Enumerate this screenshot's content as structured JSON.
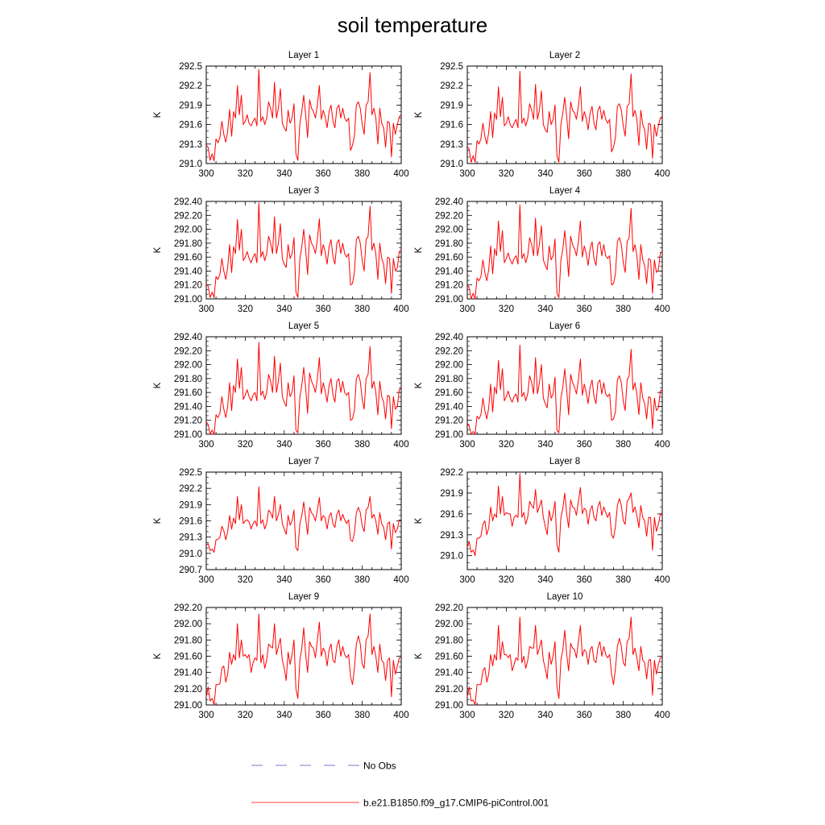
{
  "title": "soil temperature",
  "colors": {
    "series": "#ff0000",
    "obs": "#7777cc",
    "axis": "#000000"
  },
  "legend": {
    "obs_label": "No Obs",
    "model_label": "b.e21.B1850.f09_g17.CMIP6-piControl.001"
  },
  "chart_data": [
    {
      "type": "line",
      "title": "Layer 1",
      "ylabel": "K",
      "xlim": [
        300,
        400
      ],
      "ylim": [
        291.0,
        292.5
      ],
      "xticks": [
        300,
        320,
        340,
        360,
        380,
        400
      ],
      "yticks": [
        "291.0",
        "291.3",
        "291.6",
        "291.9",
        "292.2",
        "292.5"
      ],
      "series_index": 0
    },
    {
      "type": "line",
      "title": "Layer 2",
      "ylabel": "K",
      "xlim": [
        300,
        400
      ],
      "ylim": [
        291.0,
        292.5
      ],
      "xticks": [
        300,
        320,
        340,
        360,
        380,
        400
      ],
      "yticks": [
        "291.0",
        "291.3",
        "291.6",
        "291.9",
        "292.2",
        "292.5"
      ],
      "series_index": 1
    },
    {
      "type": "line",
      "title": "Layer 3",
      "ylabel": "K",
      "xlim": [
        300,
        400
      ],
      "ylim": [
        291.0,
        292.4
      ],
      "xticks": [
        300,
        320,
        340,
        360,
        380,
        400
      ],
      "yticks": [
        "291.00",
        "291.20",
        "291.40",
        "291.60",
        "291.80",
        "292.00",
        "292.20",
        "292.40"
      ],
      "series_index": 2
    },
    {
      "type": "line",
      "title": "Layer 4",
      "ylabel": "K",
      "xlim": [
        300,
        400
      ],
      "ylim": [
        291.0,
        292.4
      ],
      "xticks": [
        300,
        320,
        340,
        360,
        380,
        400
      ],
      "yticks": [
        "291.00",
        "291.20",
        "291.40",
        "291.60",
        "291.80",
        "292.00",
        "292.20",
        "292.40"
      ],
      "series_index": 3
    },
    {
      "type": "line",
      "title": "Layer 5",
      "ylabel": "K",
      "xlim": [
        300,
        400
      ],
      "ylim": [
        291.0,
        292.4
      ],
      "xticks": [
        300,
        320,
        340,
        360,
        380,
        400
      ],
      "yticks": [
        "291.00",
        "291.20",
        "291.40",
        "291.60",
        "291.80",
        "292.00",
        "292.20",
        "292.40"
      ],
      "series_index": 4
    },
    {
      "type": "line",
      "title": "Layer 6",
      "ylabel": "K",
      "xlim": [
        300,
        400
      ],
      "ylim": [
        291.0,
        292.4
      ],
      "xticks": [
        300,
        320,
        340,
        360,
        380,
        400
      ],
      "yticks": [
        "291.00",
        "291.20",
        "291.40",
        "291.60",
        "291.80",
        "292.00",
        "292.20",
        "292.40"
      ],
      "series_index": 5
    },
    {
      "type": "line",
      "title": "Layer 7",
      "ylabel": "K",
      "xlim": [
        300,
        400
      ],
      "ylim": [
        290.7,
        292.5
      ],
      "xticks": [
        300,
        320,
        340,
        360,
        380,
        400
      ],
      "yticks": [
        "290.7",
        "291.0",
        "291.3",
        "291.6",
        "291.9",
        "292.2",
        "292.5"
      ],
      "series_index": 6
    },
    {
      "type": "line",
      "title": "Layer 8",
      "ylabel": "K",
      "xlim": [
        300,
        400
      ],
      "ylim": [
        290.8,
        292.2
      ],
      "xticks": [
        300,
        320,
        340,
        360,
        380,
        400
      ],
      "yticks": [
        "291.0",
        "291.3",
        "291.6",
        "291.9",
        "292.2"
      ],
      "ytick_values": [
        291.0,
        291.3,
        291.6,
        291.9,
        292.2
      ],
      "series_index": 7
    },
    {
      "type": "line",
      "title": "Layer 9",
      "ylabel": "K",
      "xlim": [
        300,
        400
      ],
      "ylim": [
        291.0,
        292.2
      ],
      "xticks": [
        300,
        320,
        340,
        360,
        380,
        400
      ],
      "yticks": [
        "291.00",
        "291.20",
        "291.40",
        "291.60",
        "291.80",
        "292.00",
        "292.20"
      ],
      "series_index": 8
    },
    {
      "type": "line",
      "title": "Layer 10",
      "ylabel": "K",
      "xlim": [
        300,
        400
      ],
      "ylim": [
        291.0,
        292.2
      ],
      "xticks": [
        300,
        320,
        340,
        360,
        380,
        400
      ],
      "yticks": [
        "291.00",
        "291.20",
        "291.40",
        "291.60",
        "291.80",
        "292.00",
        "292.20"
      ],
      "series_index": 9
    }
  ],
  "series_x_start": 300,
  "series_x_step": 1,
  "series": [
    [
      291.28,
      291.25,
      291.05,
      291.15,
      291.04,
      291.38,
      291.32,
      291.4,
      291.65,
      291.45,
      291.33,
      291.5,
      291.83,
      291.42,
      291.8,
      291.7,
      292.2,
      291.75,
      292.05,
      291.6,
      291.65,
      291.75,
      291.62,
      291.58,
      291.65,
      291.7,
      291.58,
      292.45,
      291.65,
      291.72,
      291.6,
      291.7,
      291.95,
      291.85,
      291.7,
      292.25,
      291.7,
      291.85,
      292.15,
      291.62,
      291.55,
      291.5,
      291.82,
      291.62,
      291.7,
      291.92,
      291.15,
      291.05,
      291.62,
      291.8,
      292.05,
      291.75,
      291.4,
      291.98,
      291.85,
      291.8,
      291.7,
      291.9,
      292.2,
      291.68,
      291.82,
      291.72,
      291.55,
      291.8,
      291.9,
      291.65,
      291.55,
      291.85,
      291.9,
      291.7,
      291.85,
      291.7,
      291.65,
      291.7,
      291.2,
      291.28,
      291.42,
      291.9,
      291.95,
      291.85,
      291.6,
      291.45,
      291.9,
      291.95,
      292.4,
      291.75,
      291.85,
      291.7,
      291.3,
      291.85,
      291.62,
      291.55,
      291.25,
      291.65,
      291.62,
      291.1,
      291.62,
      291.45,
      291.6,
      291.72,
      291.75
    ],
    [
      291.26,
      291.22,
      291.02,
      291.12,
      291.02,
      291.35,
      291.3,
      291.38,
      291.62,
      291.42,
      291.3,
      291.48,
      291.8,
      291.4,
      291.78,
      291.68,
      292.18,
      291.72,
      292.02,
      291.58,
      291.62,
      291.72,
      291.6,
      291.55,
      291.62,
      291.68,
      291.55,
      292.42,
      291.62,
      291.7,
      291.58,
      291.68,
      291.92,
      291.82,
      291.68,
      292.22,
      291.68,
      291.82,
      292.12,
      291.6,
      291.52,
      291.48,
      291.8,
      291.6,
      291.68,
      291.9,
      291.12,
      291.02,
      291.6,
      291.78,
      292.02,
      291.72,
      291.38,
      291.95,
      291.82,
      291.78,
      291.68,
      291.88,
      292.18,
      291.65,
      291.8,
      291.7,
      291.52,
      291.78,
      291.88,
      291.62,
      291.52,
      291.82,
      291.88,
      291.68,
      291.82,
      291.68,
      291.62,
      291.68,
      291.18,
      291.25,
      291.4,
      291.88,
      291.92,
      291.82,
      291.58,
      291.42,
      291.88,
      291.92,
      292.38,
      291.72,
      291.82,
      291.68,
      291.28,
      291.82,
      291.6,
      291.52,
      291.22,
      291.62,
      291.6,
      291.08,
      291.6,
      291.42,
      291.58,
      291.7,
      291.72
    ],
    [
      291.22,
      291.18,
      291.02,
      291.1,
      291.02,
      291.32,
      291.28,
      291.35,
      291.58,
      291.4,
      291.28,
      291.45,
      291.78,
      291.38,
      291.75,
      291.65,
      292.14,
      291.7,
      292.0,
      291.55,
      291.6,
      291.68,
      291.58,
      291.52,
      291.6,
      291.65,
      291.52,
      292.38,
      291.6,
      291.68,
      291.55,
      291.65,
      291.9,
      291.8,
      291.65,
      292.18,
      291.65,
      291.8,
      292.08,
      291.58,
      291.5,
      291.45,
      291.78,
      291.58,
      291.65,
      291.88,
      291.1,
      291.02,
      291.58,
      291.75,
      292.0,
      291.7,
      291.35,
      291.92,
      291.8,
      291.75,
      291.65,
      291.85,
      292.15,
      291.62,
      291.78,
      291.68,
      291.5,
      291.75,
      291.85,
      291.6,
      291.5,
      291.8,
      291.85,
      291.65,
      291.8,
      291.65,
      291.6,
      291.65,
      291.2,
      291.22,
      291.38,
      291.85,
      291.9,
      291.8,
      291.55,
      291.4,
      291.85,
      291.9,
      292.33,
      291.7,
      291.8,
      291.65,
      291.28,
      291.8,
      291.58,
      291.5,
      291.22,
      291.6,
      291.58,
      291.08,
      291.58,
      291.4,
      291.45,
      291.68,
      291.7
    ],
    [
      291.2,
      291.16,
      291.0,
      291.08,
      291.0,
      291.3,
      291.26,
      291.32,
      291.56,
      291.38,
      291.26,
      291.42,
      291.76,
      291.36,
      291.72,
      291.62,
      292.12,
      291.68,
      291.98,
      291.52,
      291.58,
      291.66,
      291.56,
      291.5,
      291.58,
      291.62,
      291.5,
      292.35,
      291.58,
      291.65,
      291.52,
      291.62,
      291.88,
      291.78,
      291.62,
      292.16,
      291.62,
      291.78,
      292.05,
      291.56,
      291.48,
      291.42,
      291.76,
      291.56,
      291.62,
      291.86,
      291.08,
      291.02,
      291.56,
      291.72,
      291.98,
      291.68,
      291.32,
      291.9,
      291.78,
      291.72,
      291.62,
      291.82,
      292.12,
      291.6,
      291.76,
      291.65,
      291.48,
      291.72,
      291.82,
      291.58,
      291.48,
      291.78,
      291.82,
      291.62,
      291.78,
      291.62,
      291.58,
      291.62,
      291.2,
      291.22,
      291.36,
      291.82,
      291.88,
      291.78,
      291.52,
      291.38,
      291.82,
      291.88,
      292.3,
      291.68,
      291.78,
      291.62,
      291.28,
      291.78,
      291.56,
      291.48,
      291.22,
      291.58,
      291.56,
      291.08,
      291.56,
      291.38,
      291.42,
      291.66,
      291.68
    ],
    [
      291.18,
      291.14,
      291.0,
      291.06,
      291.0,
      291.28,
      291.24,
      291.3,
      291.54,
      291.36,
      291.24,
      291.4,
      291.74,
      291.34,
      291.7,
      291.6,
      292.08,
      291.66,
      291.96,
      291.5,
      291.56,
      291.64,
      291.54,
      291.48,
      291.56,
      291.6,
      291.48,
      292.32,
      291.56,
      291.62,
      291.5,
      291.6,
      291.86,
      291.76,
      291.6,
      292.12,
      291.6,
      291.76,
      292.02,
      291.54,
      291.46,
      291.4,
      291.74,
      291.54,
      291.6,
      291.84,
      291.06,
      291.02,
      291.54,
      291.7,
      291.96,
      291.66,
      291.3,
      291.88,
      291.76,
      291.7,
      291.6,
      291.8,
      292.1,
      291.58,
      291.74,
      291.62,
      291.46,
      291.7,
      291.8,
      291.56,
      291.46,
      291.76,
      291.8,
      291.6,
      291.76,
      291.6,
      291.56,
      291.6,
      291.2,
      291.22,
      291.34,
      291.8,
      291.86,
      291.76,
      291.5,
      291.36,
      291.8,
      291.86,
      292.26,
      291.66,
      291.76,
      291.6,
      291.28,
      291.76,
      291.54,
      291.46,
      291.22,
      291.56,
      291.54,
      291.08,
      291.54,
      291.36,
      291.4,
      291.64,
      291.66
    ],
    [
      291.16,
      291.12,
      291.0,
      291.04,
      291.0,
      291.26,
      291.22,
      291.28,
      291.52,
      291.34,
      291.22,
      291.38,
      291.72,
      291.32,
      291.68,
      291.58,
      292.06,
      291.64,
      291.94,
      291.48,
      291.54,
      291.62,
      291.52,
      291.46,
      291.54,
      291.58,
      291.46,
      292.28,
      291.54,
      291.6,
      291.48,
      291.58,
      291.84,
      291.74,
      291.58,
      292.1,
      291.58,
      291.74,
      292.0,
      291.52,
      291.44,
      291.38,
      291.72,
      291.52,
      291.58,
      291.82,
      291.06,
      291.02,
      291.52,
      291.68,
      291.94,
      291.64,
      291.28,
      291.86,
      291.74,
      291.68,
      291.58,
      291.78,
      292.08,
      291.56,
      291.72,
      291.6,
      291.44,
      291.68,
      291.78,
      291.54,
      291.44,
      291.74,
      291.78,
      291.58,
      291.74,
      291.58,
      291.54,
      291.58,
      291.2,
      291.22,
      291.32,
      291.78,
      291.84,
      291.74,
      291.48,
      291.34,
      291.78,
      291.84,
      292.22,
      291.64,
      291.74,
      291.58,
      291.28,
      291.74,
      291.52,
      291.44,
      291.22,
      291.54,
      291.52,
      291.08,
      291.52,
      291.34,
      291.38,
      291.62,
      291.64
    ],
    [
      291.15,
      291.18,
      291.05,
      291.08,
      291.02,
      291.25,
      291.26,
      291.3,
      291.5,
      291.42,
      291.25,
      291.4,
      291.7,
      291.45,
      291.65,
      291.55,
      292.05,
      291.62,
      291.9,
      291.55,
      291.6,
      291.62,
      291.58,
      291.45,
      291.55,
      291.6,
      291.5,
      292.23,
      291.55,
      291.62,
      291.45,
      291.55,
      291.8,
      291.75,
      291.65,
      292.05,
      291.6,
      291.72,
      291.9,
      291.55,
      291.45,
      291.35,
      291.7,
      291.52,
      291.6,
      291.8,
      291.1,
      291.05,
      291.55,
      291.7,
      291.95,
      291.65,
      291.35,
      291.85,
      291.75,
      291.7,
      291.6,
      291.8,
      292.03,
      291.6,
      291.7,
      291.65,
      291.45,
      291.68,
      291.75,
      291.55,
      291.48,
      291.72,
      291.8,
      291.6,
      291.72,
      291.62,
      291.55,
      291.62,
      291.25,
      291.22,
      291.38,
      291.75,
      291.85,
      291.75,
      291.5,
      291.4,
      291.8,
      291.85,
      292.05,
      291.65,
      291.72,
      291.6,
      291.35,
      291.75,
      291.55,
      291.48,
      291.25,
      291.55,
      291.58,
      291.08,
      291.55,
      291.38,
      291.45,
      291.62,
      291.62
    ],
    [
      291.12,
      291.2,
      291.05,
      291.08,
      291.0,
      291.25,
      291.25,
      291.28,
      291.45,
      291.5,
      291.3,
      291.4,
      291.7,
      291.5,
      291.6,
      291.55,
      292.0,
      291.6,
      291.85,
      291.58,
      291.62,
      291.6,
      291.6,
      291.42,
      291.55,
      291.58,
      291.55,
      292.18,
      291.55,
      291.62,
      291.45,
      291.55,
      291.78,
      291.72,
      291.68,
      291.95,
      291.62,
      291.7,
      291.8,
      291.55,
      291.42,
      291.3,
      291.65,
      291.5,
      291.6,
      291.78,
      291.15,
      291.05,
      291.55,
      291.68,
      291.9,
      291.6,
      291.4,
      291.8,
      291.7,
      291.68,
      291.58,
      291.78,
      291.98,
      291.6,
      291.68,
      291.65,
      291.45,
      291.65,
      291.72,
      291.55,
      291.5,
      291.7,
      291.78,
      291.58,
      291.7,
      291.62,
      291.55,
      291.62,
      291.3,
      291.25,
      291.42,
      291.72,
      291.82,
      291.72,
      291.5,
      291.45,
      291.78,
      291.82,
      291.9,
      291.62,
      291.7,
      291.58,
      291.4,
      291.72,
      291.55,
      291.5,
      291.28,
      291.55,
      291.55,
      291.08,
      291.55,
      291.35,
      291.45,
      291.6,
      291.58
    ],
    [
      291.1,
      291.22,
      291.05,
      291.08,
      291.0,
      291.25,
      291.25,
      291.26,
      291.45,
      291.48,
      291.28,
      291.38,
      291.65,
      291.5,
      291.62,
      291.55,
      292.0,
      291.58,
      291.8,
      291.6,
      291.62,
      291.58,
      291.62,
      291.4,
      291.52,
      291.58,
      291.55,
      292.12,
      291.52,
      291.62,
      291.45,
      291.55,
      291.75,
      291.72,
      291.7,
      292.0,
      291.62,
      291.72,
      291.82,
      291.55,
      291.45,
      291.3,
      291.65,
      291.5,
      291.62,
      291.8,
      291.2,
      291.08,
      291.55,
      291.7,
      291.95,
      291.62,
      291.4,
      291.78,
      291.72,
      291.7,
      291.58,
      291.8,
      292.02,
      291.6,
      291.7,
      291.65,
      291.48,
      291.68,
      291.75,
      291.55,
      291.52,
      291.72,
      291.8,
      291.6,
      291.72,
      291.62,
      291.58,
      291.62,
      291.35,
      291.25,
      291.45,
      291.75,
      291.85,
      291.75,
      291.5,
      291.45,
      291.8,
      291.85,
      292.12,
      291.62,
      291.72,
      291.6,
      291.4,
      291.75,
      291.55,
      291.52,
      291.3,
      291.55,
      291.58,
      291.1,
      291.55,
      291.38,
      291.48,
      291.58,
      291.58
    ],
    [
      291.1,
      291.22,
      291.05,
      291.06,
      291.0,
      291.25,
      291.25,
      291.25,
      291.42,
      291.46,
      291.28,
      291.38,
      291.62,
      291.48,
      291.62,
      291.55,
      291.98,
      291.56,
      291.78,
      291.62,
      291.62,
      291.58,
      291.62,
      291.42,
      291.5,
      291.58,
      291.55,
      292.08,
      291.52,
      291.6,
      291.45,
      291.55,
      291.72,
      291.7,
      291.7,
      291.98,
      291.62,
      291.7,
      291.8,
      291.55,
      291.45,
      291.32,
      291.65,
      291.5,
      291.6,
      291.78,
      291.22,
      291.08,
      291.55,
      291.68,
      291.92,
      291.62,
      291.42,
      291.76,
      291.7,
      291.68,
      291.58,
      291.78,
      291.98,
      291.6,
      291.68,
      291.65,
      291.5,
      291.68,
      291.72,
      291.55,
      291.52,
      291.7,
      291.78,
      291.6,
      291.72,
      291.62,
      291.58,
      291.62,
      291.38,
      291.25,
      291.45,
      291.72,
      291.82,
      291.72,
      291.52,
      291.48,
      291.78,
      291.82,
      292.08,
      291.62,
      291.7,
      291.58,
      291.42,
      291.72,
      291.55,
      291.52,
      291.32,
      291.55,
      291.56,
      291.12,
      291.55,
      291.38,
      291.5,
      291.58,
      291.58
    ]
  ]
}
